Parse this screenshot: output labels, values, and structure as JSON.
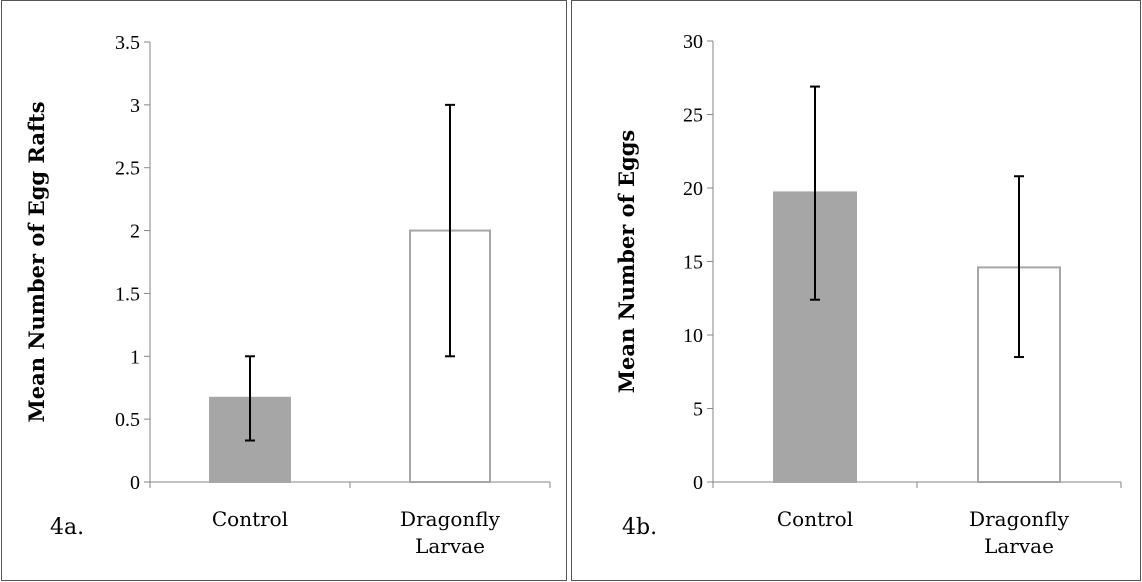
{
  "chart_data": [
    {
      "type": "bar",
      "panel_label": "4a.",
      "title": "",
      "xlabel": "",
      "ylabel": "Mean Number of Egg Rafts",
      "categories": [
        [
          "Control"
        ],
        [
          "Dragonfly",
          "Larvae"
        ]
      ],
      "values": [
        0.67,
        2.0
      ],
      "error_low": [
        0.33,
        1.0
      ],
      "error_high": [
        1.0,
        3.0
      ],
      "ylim": [
        0,
        3.5
      ],
      "yticks": [
        0,
        0.5,
        1,
        1.5,
        2,
        2.5,
        3,
        3.5
      ],
      "ytick_labels": [
        "0",
        "0.5",
        "1",
        "1.5",
        "2",
        "2.5",
        "3",
        "3.5"
      ],
      "bar_fills": [
        "#a6a6a6",
        "#ffffff"
      ],
      "bar_strokes": [
        "#a6a6a6",
        "#a6a6a6"
      ],
      "grid": false,
      "legend": "none"
    },
    {
      "type": "bar",
      "panel_label": "4b.",
      "title": "",
      "xlabel": "",
      "ylabel": "Mean Number of Eggs",
      "categories": [
        [
          "Control"
        ],
        [
          "Dragonfly",
          "Larvae"
        ]
      ],
      "values": [
        19.7,
        14.6
      ],
      "error_low": [
        12.4,
        8.5
      ],
      "error_high": [
        26.9,
        20.8
      ],
      "ylim": [
        0,
        30
      ],
      "yticks": [
        0,
        5,
        10,
        15,
        20,
        25,
        30
      ],
      "ytick_labels": [
        "0",
        "5",
        "10",
        "15",
        "20",
        "25",
        "30"
      ],
      "bar_fills": [
        "#a6a6a6",
        "#ffffff"
      ],
      "bar_strokes": [
        "#a6a6a6",
        "#a6a6a6"
      ],
      "grid": false,
      "legend": "none"
    }
  ]
}
